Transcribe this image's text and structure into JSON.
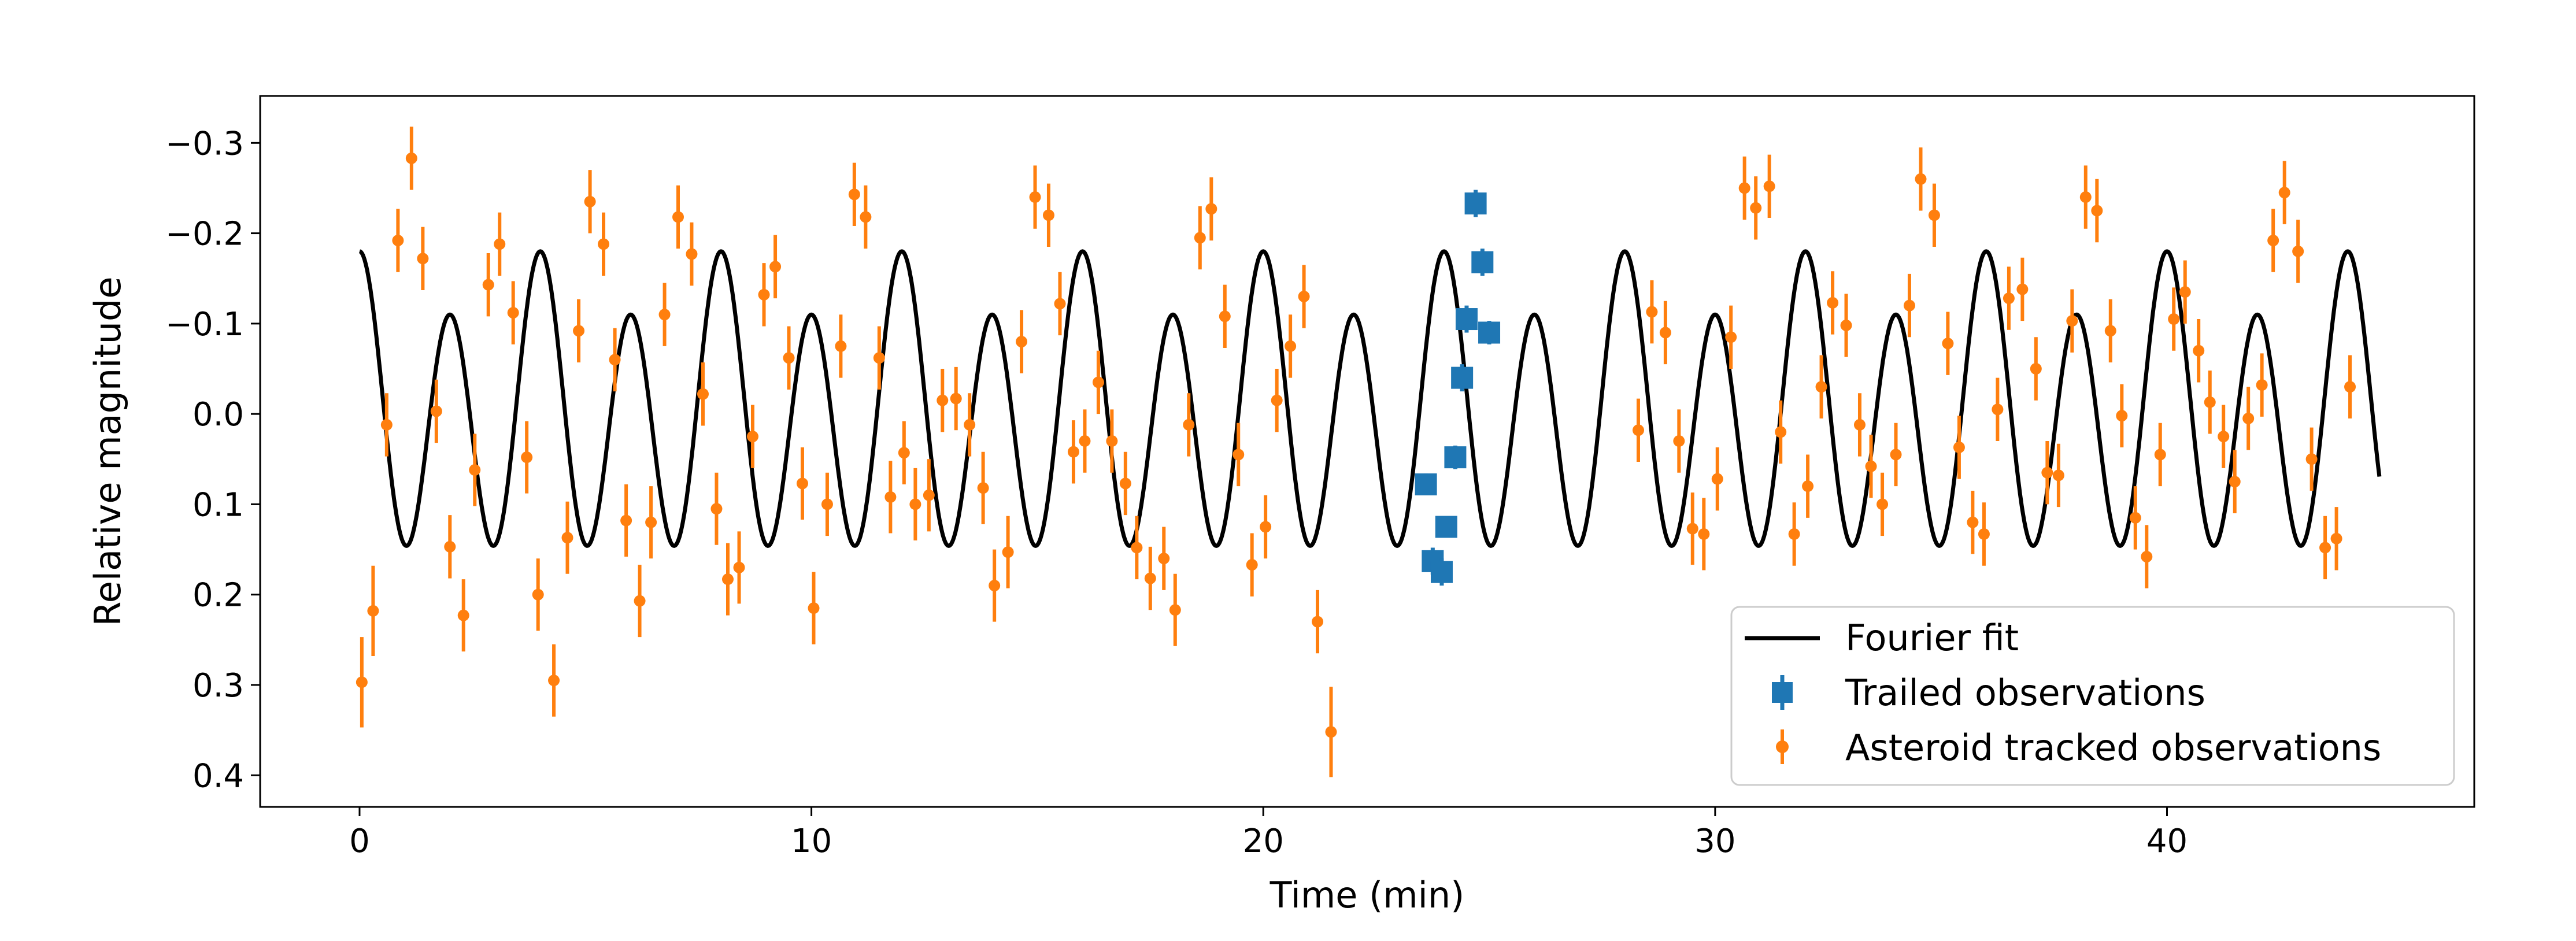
{
  "chart_data": {
    "type": "scatter",
    "title": "",
    "xlabel": "Time (min)",
    "ylabel": "Relative magnitude",
    "xlim": [
      -2.2,
      46.8
    ],
    "ylim": [
      0.435,
      -0.352
    ],
    "y_inverted": true,
    "xticks": [
      0,
      10,
      20,
      30,
      40
    ],
    "xtick_labels": [
      "0",
      "10",
      "20",
      "30",
      "40"
    ],
    "yticks": [
      -0.3,
      -0.2,
      -0.1,
      0.0,
      0.1,
      0.2,
      0.3,
      0.4
    ],
    "ytick_labels": [
      "−0.3",
      "−0.2",
      "−0.1",
      "0.0",
      "0.1",
      "0.2",
      "0.3",
      "0.4"
    ],
    "grid": false,
    "legend_position": "lower-right",
    "colors": {
      "fit": "#000000",
      "trailed": "#1f77b4",
      "tracked": "#ff7f0e"
    },
    "fit_model": {
      "x_range": [
        0.0,
        44.7
      ],
      "period_min": 4.0,
      "offset": 0.0,
      "harmonics": [
        {
          "n": 1,
          "a": -0.035,
          "b": 0.0
        },
        {
          "n": 2,
          "a": -0.145,
          "b": 0.0
        }
      ]
    },
    "series": [
      {
        "name": "Fourier fit",
        "kind": "line"
      },
      {
        "name": "Trailed observations",
        "kind": "errorbar",
        "marker": "square",
        "points": [
          [
            23.6,
            0.078,
            0.012
          ],
          [
            23.75,
            0.163,
            0.015
          ],
          [
            23.95,
            0.175,
            0.015
          ],
          [
            24.05,
            0.125,
            0.012
          ],
          [
            24.25,
            0.048,
            0.013
          ],
          [
            24.4,
            -0.04,
            0.015
          ],
          [
            24.5,
            -0.105,
            0.015
          ],
          [
            24.7,
            -0.233,
            0.015
          ],
          [
            24.85,
            -0.168,
            0.015
          ],
          [
            25.0,
            -0.09,
            0.013
          ]
        ]
      },
      {
        "name": "Asteroid tracked observations",
        "kind": "errorbar",
        "marker": "circle",
        "points": [
          [
            0.05,
            0.297,
            0.05
          ],
          [
            0.3,
            0.218,
            0.05
          ],
          [
            0.6,
            0.012,
            0.035
          ],
          [
            0.85,
            -0.192,
            0.035
          ],
          [
            1.15,
            -0.283,
            0.035
          ],
          [
            1.4,
            -0.172,
            0.035
          ],
          [
            1.7,
            -0.003,
            0.035
          ],
          [
            2.0,
            0.147,
            0.035
          ],
          [
            2.3,
            0.223,
            0.04
          ],
          [
            2.55,
            0.062,
            0.04
          ],
          [
            2.85,
            -0.143,
            0.035
          ],
          [
            3.1,
            -0.188,
            0.035
          ],
          [
            3.4,
            -0.112,
            0.035
          ],
          [
            3.7,
            0.048,
            0.04
          ],
          [
            3.95,
            0.2,
            0.04
          ],
          [
            4.3,
            0.295,
            0.04
          ],
          [
            4.6,
            0.137,
            0.04
          ],
          [
            4.85,
            -0.092,
            0.035
          ],
          [
            5.1,
            -0.235,
            0.035
          ],
          [
            5.4,
            -0.188,
            0.035
          ],
          [
            5.65,
            -0.06,
            0.035
          ],
          [
            5.9,
            0.118,
            0.04
          ],
          [
            6.2,
            0.207,
            0.04
          ],
          [
            6.45,
            0.12,
            0.04
          ],
          [
            6.75,
            -0.11,
            0.035
          ],
          [
            7.05,
            -0.218,
            0.035
          ],
          [
            7.35,
            -0.177,
            0.035
          ],
          [
            7.6,
            -0.022,
            0.035
          ],
          [
            7.9,
            0.105,
            0.04
          ],
          [
            8.15,
            0.183,
            0.04
          ],
          [
            8.4,
            0.17,
            0.04
          ],
          [
            8.7,
            0.025,
            0.035
          ],
          [
            8.95,
            -0.132,
            0.035
          ],
          [
            9.2,
            -0.163,
            0.035
          ],
          [
            9.5,
            -0.062,
            0.035
          ],
          [
            9.8,
            0.077,
            0.04
          ],
          [
            10.05,
            0.215,
            0.04
          ],
          [
            10.35,
            0.1,
            0.035
          ],
          [
            10.65,
            -0.075,
            0.035
          ],
          [
            10.95,
            -0.243,
            0.035
          ],
          [
            11.2,
            -0.218,
            0.035
          ],
          [
            11.5,
            -0.062,
            0.035
          ],
          [
            11.75,
            0.092,
            0.04
          ],
          [
            12.05,
            0.043,
            0.035
          ],
          [
            12.3,
            0.1,
            0.04
          ],
          [
            12.6,
            0.09,
            0.04
          ],
          [
            12.9,
            -0.015,
            0.035
          ],
          [
            13.2,
            -0.017,
            0.035
          ],
          [
            13.5,
            0.012,
            0.035
          ],
          [
            13.8,
            0.082,
            0.04
          ],
          [
            14.05,
            0.19,
            0.04
          ],
          [
            14.35,
            0.153,
            0.04
          ],
          [
            14.65,
            -0.08,
            0.035
          ],
          [
            14.95,
            -0.24,
            0.035
          ],
          [
            15.25,
            -0.22,
            0.035
          ],
          [
            15.5,
            -0.122,
            0.035
          ],
          [
            15.8,
            0.042,
            0.035
          ],
          [
            16.05,
            0.03,
            0.035
          ],
          [
            16.35,
            -0.035,
            0.035
          ],
          [
            16.65,
            0.03,
            0.035
          ],
          [
            16.95,
            0.077,
            0.035
          ],
          [
            17.2,
            0.148,
            0.035
          ],
          [
            17.5,
            0.182,
            0.035
          ],
          [
            17.8,
            0.16,
            0.035
          ],
          [
            18.05,
            0.217,
            0.04
          ],
          [
            18.35,
            0.012,
            0.035
          ],
          [
            18.6,
            -0.195,
            0.035
          ],
          [
            18.85,
            -0.227,
            0.035
          ],
          [
            19.15,
            -0.108,
            0.035
          ],
          [
            19.45,
            0.045,
            0.035
          ],
          [
            19.75,
            0.167,
            0.035
          ],
          [
            20.05,
            0.125,
            0.035
          ],
          [
            20.3,
            -0.015,
            0.035
          ],
          [
            20.6,
            -0.075,
            0.035
          ],
          [
            20.9,
            -0.13,
            0.035
          ],
          [
            21.2,
            0.23,
            0.035
          ],
          [
            21.5,
            0.352,
            0.05
          ],
          [
            28.3,
            0.018,
            0.035
          ],
          [
            28.6,
            -0.113,
            0.035
          ],
          [
            28.9,
            -0.09,
            0.035
          ],
          [
            29.2,
            0.03,
            0.035
          ],
          [
            29.5,
            0.127,
            0.04
          ],
          [
            29.75,
            0.133,
            0.04
          ],
          [
            30.05,
            0.072,
            0.035
          ],
          [
            30.35,
            -0.085,
            0.035
          ],
          [
            30.65,
            -0.25,
            0.035
          ],
          [
            30.9,
            -0.228,
            0.035
          ],
          [
            31.2,
            -0.252,
            0.035
          ],
          [
            31.45,
            0.02,
            0.035
          ],
          [
            31.75,
            0.133,
            0.035
          ],
          [
            32.05,
            0.08,
            0.035
          ],
          [
            32.35,
            -0.03,
            0.035
          ],
          [
            32.6,
            -0.123,
            0.035
          ],
          [
            32.9,
            -0.098,
            0.035
          ],
          [
            33.2,
            0.012,
            0.035
          ],
          [
            33.45,
            0.058,
            0.035
          ],
          [
            33.7,
            0.1,
            0.035
          ],
          [
            34.0,
            0.045,
            0.035
          ],
          [
            34.3,
            -0.12,
            0.035
          ],
          [
            34.55,
            -0.26,
            0.035
          ],
          [
            34.85,
            -0.22,
            0.035
          ],
          [
            35.15,
            -0.078,
            0.035
          ],
          [
            35.4,
            0.037,
            0.035
          ],
          [
            35.7,
            0.12,
            0.035
          ],
          [
            35.95,
            0.133,
            0.035
          ],
          [
            36.25,
            -0.005,
            0.035
          ],
          [
            36.5,
            -0.128,
            0.035
          ],
          [
            36.8,
            -0.138,
            0.035
          ],
          [
            37.1,
            -0.05,
            0.035
          ],
          [
            37.35,
            0.065,
            0.035
          ],
          [
            37.6,
            0.068,
            0.035
          ],
          [
            37.9,
            -0.103,
            0.035
          ],
          [
            38.2,
            -0.24,
            0.035
          ],
          [
            38.45,
            -0.225,
            0.035
          ],
          [
            38.75,
            -0.092,
            0.035
          ],
          [
            39.0,
            0.002,
            0.035
          ],
          [
            39.3,
            0.115,
            0.035
          ],
          [
            39.55,
            0.158,
            0.035
          ],
          [
            39.85,
            0.045,
            0.035
          ],
          [
            40.15,
            -0.105,
            0.035
          ],
          [
            40.4,
            -0.135,
            0.035
          ],
          [
            40.7,
            -0.07,
            0.035
          ],
          [
            40.95,
            -0.013,
            0.035
          ],
          [
            41.25,
            0.025,
            0.035
          ],
          [
            41.5,
            0.075,
            0.035
          ],
          [
            41.8,
            0.005,
            0.035
          ],
          [
            42.1,
            -0.032,
            0.035
          ],
          [
            42.35,
            -0.192,
            0.035
          ],
          [
            42.6,
            -0.245,
            0.035
          ],
          [
            42.9,
            -0.18,
            0.035
          ],
          [
            43.2,
            0.05,
            0.035
          ],
          [
            43.5,
            0.148,
            0.035
          ],
          [
            43.75,
            0.138,
            0.035
          ],
          [
            44.05,
            -0.03,
            0.035
          ]
        ]
      }
    ]
  }
}
